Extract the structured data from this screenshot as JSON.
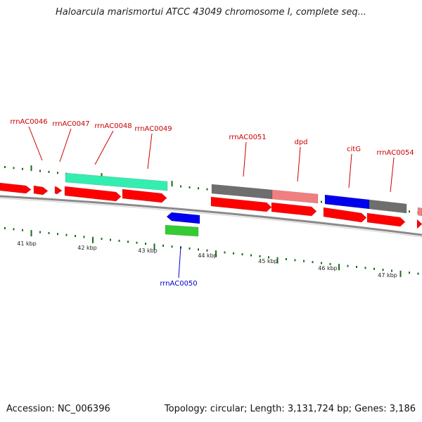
{
  "title": "Haloarcula marismortui ATCC 43049 chromosome I, complete seq...",
  "footer": {
    "accession": "Accession: NC_006396",
    "summary": "Topology: circular; Length: 3,131,724 bp; Genes: 3,186"
  },
  "colors": {
    "rrna": "#ff0000",
    "rrna_dark": "#d00000",
    "teal": "#33eeb0",
    "blue": "#0000ee",
    "green": "#33cc33",
    "gray": "#6e6e6e",
    "pink": "#f08080",
    "tick": "#1a6b1a",
    "backbone": "#8a8a8a",
    "label_red": "#cc0000",
    "label_blue": "#0000cc"
  },
  "scale": {
    "labels": [
      "41 kbp",
      "42 kbp",
      "43 kbp",
      "44 kbp",
      "45 kbp",
      "46 kbp",
      "47 kbp"
    ]
  },
  "gene_labels": {
    "top": [
      "rrnAC0046",
      "rrnAC0047",
      "rrnAC0048",
      "rrnAC0049",
      "rrnAC0051",
      "dpd",
      "citG",
      "rrnAC0054"
    ],
    "bottom": [
      "rrnAC0050"
    ]
  }
}
